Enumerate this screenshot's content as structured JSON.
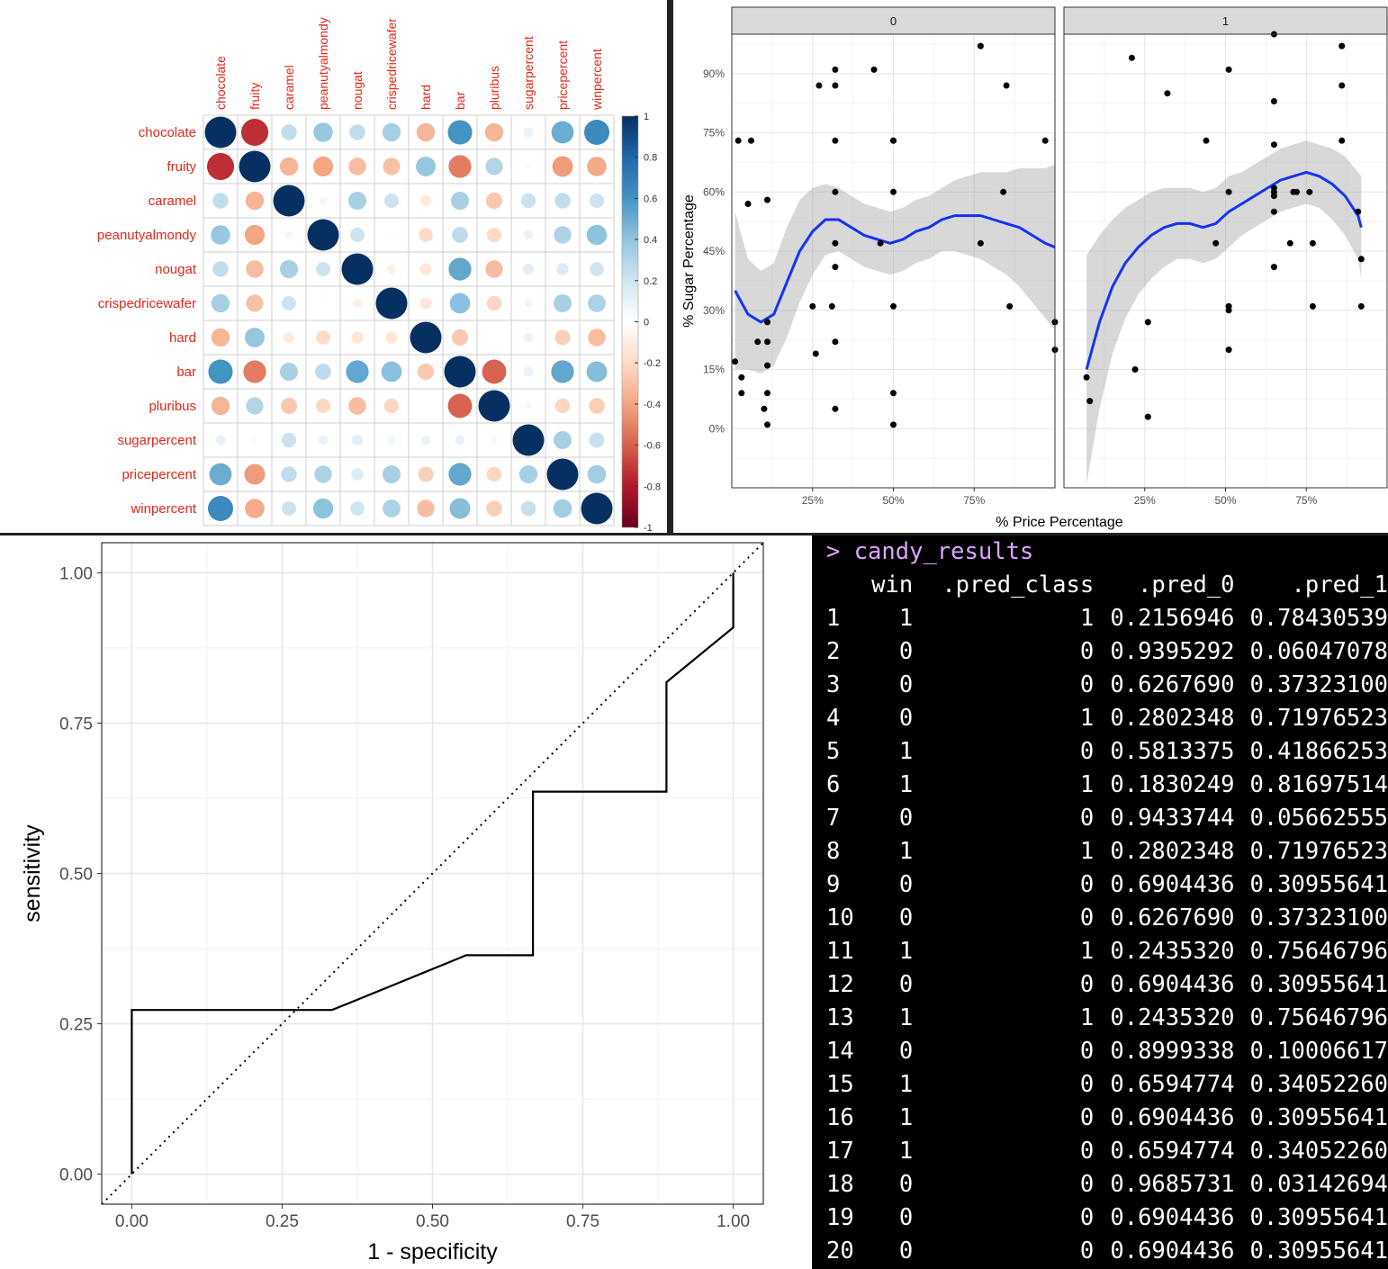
{
  "corrplot": {
    "variables": [
      "chocolate",
      "fruity",
      "caramel",
      "peanutyalmondy",
      "nougat",
      "crispedricewafer",
      "hard",
      "bar",
      "pluribus",
      "sugarpercent",
      "pricepercent",
      "winpercent"
    ],
    "matrix": [
      [
        1,
        -0.74,
        0.25,
        0.38,
        0.25,
        0.34,
        -0.34,
        0.6,
        -0.34,
        0.1,
        0.5,
        0.64
      ],
      [
        -0.74,
        1,
        -0.34,
        -0.4,
        -0.31,
        -0.3,
        0.39,
        -0.52,
        0.3,
        -0.03,
        -0.43,
        -0.38
      ],
      [
        0.25,
        -0.34,
        1,
        0.06,
        0.33,
        0.21,
        -0.12,
        0.33,
        -0.27,
        0.22,
        0.25,
        0.21
      ],
      [
        0.38,
        -0.4,
        0.06,
        1,
        0.21,
        -0.02,
        -0.2,
        0.26,
        -0.21,
        0.09,
        0.31,
        0.41
      ],
      [
        0.25,
        -0.31,
        0.33,
        0.21,
        1,
        -0.09,
        -0.14,
        0.52,
        -0.31,
        0.12,
        0.15,
        0.2
      ],
      [
        0.34,
        -0.3,
        0.21,
        -0.02,
        -0.09,
        1,
        -0.14,
        0.42,
        -0.22,
        0.07,
        0.33,
        0.32
      ],
      [
        -0.34,
        0.39,
        -0.12,
        -0.2,
        -0.14,
        -0.14,
        1,
        -0.27,
        0.01,
        0.09,
        -0.24,
        -0.31
      ],
      [
        0.6,
        -0.52,
        0.33,
        0.26,
        0.52,
        0.42,
        -0.27,
        1,
        -0.59,
        0.1,
        0.52,
        0.43
      ],
      [
        -0.34,
        0.3,
        -0.27,
        -0.21,
        -0.31,
        -0.22,
        0.01,
        -0.59,
        1,
        0.05,
        -0.22,
        -0.25
      ],
      [
        0.1,
        -0.03,
        0.22,
        0.09,
        0.12,
        0.07,
        0.09,
        0.1,
        0.05,
        1,
        0.33,
        0.23
      ],
      [
        0.5,
        -0.43,
        0.25,
        0.31,
        0.15,
        0.33,
        -0.24,
        0.52,
        -0.22,
        0.33,
        1,
        0.35
      ],
      [
        0.64,
        -0.38,
        0.21,
        0.41,
        0.2,
        0.32,
        -0.31,
        0.43,
        -0.25,
        0.23,
        0.35,
        1
      ]
    ],
    "legend_ticks": [
      "1",
      "0.8",
      "0.6",
      "0.4",
      "0.2",
      "0",
      "-0.2",
      "-0.4",
      "-0.6",
      "-0.8",
      "-1"
    ],
    "label_color": "#e3261b",
    "colors": {
      "pos_strong": "#0d2e63",
      "pos_mid": "#4f93c6",
      "neg_strong": "#b2182b",
      "neg_mid": "#e0614f"
    }
  },
  "scatter": {
    "facets": [
      "0",
      "1"
    ],
    "xlabel": "% Price Percentage",
    "ylabel": "% Sugar Percentage",
    "x_ticks": [
      "25%",
      "50%",
      "75%"
    ],
    "y_ticks": [
      "0%",
      "15%",
      "30%",
      "45%",
      "60%",
      "75%",
      "90%"
    ],
    "smooth_color": "#1433f5"
  },
  "roc": {
    "xlabel": "1 - specificity",
    "ylabel": "sensitivity",
    "x_ticks": [
      "0.00",
      "0.25",
      "0.50",
      "0.75",
      "1.00"
    ],
    "y_ticks": [
      "0.00",
      "0.25",
      "0.50",
      "0.75",
      "1.00"
    ]
  },
  "console": {
    "prompt": "> candy_results",
    "headers": [
      "win",
      ".pred_class",
      ".pred_0",
      ".pred_1"
    ],
    "rows": [
      [
        "1",
        "1",
        "1",
        "0.2156946",
        "0.78430539"
      ],
      [
        "2",
        "0",
        "0",
        "0.9395292",
        "0.06047078"
      ],
      [
        "3",
        "0",
        "0",
        "0.6267690",
        "0.37323100"
      ],
      [
        "4",
        "0",
        "1",
        "0.2802348",
        "0.71976523"
      ],
      [
        "5",
        "1",
        "0",
        "0.5813375",
        "0.41866253"
      ],
      [
        "6",
        "1",
        "1",
        "0.1830249",
        "0.81697514"
      ],
      [
        "7",
        "0",
        "0",
        "0.9433744",
        "0.05662555"
      ],
      [
        "8",
        "1",
        "1",
        "0.2802348",
        "0.71976523"
      ],
      [
        "9",
        "0",
        "0",
        "0.6904436",
        "0.30955641"
      ],
      [
        "10",
        "0",
        "0",
        "0.6267690",
        "0.37323100"
      ],
      [
        "11",
        "1",
        "1",
        "0.2435320",
        "0.75646796"
      ],
      [
        "12",
        "0",
        "0",
        "0.6904436",
        "0.30955641"
      ],
      [
        "13",
        "1",
        "1",
        "0.2435320",
        "0.75646796"
      ],
      [
        "14",
        "0",
        "0",
        "0.8999338",
        "0.10006617"
      ],
      [
        "15",
        "1",
        "0",
        "0.6594774",
        "0.34052260"
      ],
      [
        "16",
        "1",
        "0",
        "0.6904436",
        "0.30955641"
      ],
      [
        "17",
        "1",
        "0",
        "0.6594774",
        "0.34052260"
      ],
      [
        "18",
        "0",
        "0",
        "0.9685731",
        "0.03142694"
      ],
      [
        "19",
        "0",
        "0",
        "0.6904436",
        "0.30955641"
      ],
      [
        "20",
        "0",
        "0",
        "0.6904436",
        "0.30955641"
      ]
    ]
  },
  "chart_data": [
    {
      "type": "heatmap",
      "title": "",
      "categories": [
        "chocolate",
        "fruity",
        "caramel",
        "peanutyalmondy",
        "nougat",
        "crispedricewafer",
        "hard",
        "bar",
        "pluribus",
        "sugarpercent",
        "pricepercent",
        "winpercent"
      ],
      "value_range": [
        -1,
        1
      ],
      "note_key": "values in corrplot.matrix"
    },
    {
      "type": "scatter",
      "facets": [
        "0",
        "1"
      ],
      "xlabel": "% Price Percentage",
      "ylabel": "% Sugar Percentage",
      "series": [
        {
          "name": "0",
          "points": [
            [
              0.01,
              0.17
            ],
            [
              0.02,
              0.73
            ],
            [
              0.03,
              0.09
            ],
            [
              0.03,
              0.13
            ],
            [
              0.05,
              0.57
            ],
            [
              0.06,
              0.73
            ],
            [
              0.08,
              0.22
            ],
            [
              0.1,
              0.05
            ],
            [
              0.11,
              0.09
            ],
            [
              0.11,
              0.16
            ],
            [
              0.11,
              0.22
            ],
            [
              0.11,
              0.01
            ],
            [
              0.11,
              0.27
            ],
            [
              0.11,
              0.58
            ],
            [
              0.25,
              0.31
            ],
            [
              0.26,
              0.19
            ],
            [
              0.27,
              0.87
            ],
            [
              0.31,
              0.31
            ],
            [
              0.32,
              0.87
            ],
            [
              0.32,
              0.91
            ],
            [
              0.32,
              0.73
            ],
            [
              0.32,
              0.6
            ],
            [
              0.32,
              0.47
            ],
            [
              0.32,
              0.41
            ],
            [
              0.32,
              0.22
            ],
            [
              0.32,
              0.05
            ],
            [
              0.44,
              0.91
            ],
            [
              0.46,
              0.47
            ],
            [
              0.5,
              0.6
            ],
            [
              0.5,
              0.73
            ],
            [
              0.5,
              0.73
            ],
            [
              0.5,
              0.31
            ],
            [
              0.5,
              0.09
            ],
            [
              0.5,
              0.01
            ],
            [
              0.77,
              0.97
            ],
            [
              0.77,
              0.47
            ],
            [
              0.84,
              0.6
            ],
            [
              0.85,
              0.87
            ],
            [
              0.86,
              0.31
            ],
            [
              0.97,
              0.73
            ],
            [
              1.0,
              0.27
            ],
            [
              1.0,
              0.2
            ]
          ],
          "smooth": [
            [
              0.01,
              0.35
            ],
            [
              0.05,
              0.29
            ],
            [
              0.09,
              0.27
            ],
            [
              0.13,
              0.29
            ],
            [
              0.17,
              0.37
            ],
            [
              0.21,
              0.45
            ],
            [
              0.25,
              0.5
            ],
            [
              0.29,
              0.53
            ],
            [
              0.33,
              0.53
            ],
            [
              0.37,
              0.51
            ],
            [
              0.41,
              0.49
            ],
            [
              0.45,
              0.48
            ],
            [
              0.49,
              0.47
            ],
            [
              0.53,
              0.48
            ],
            [
              0.57,
              0.5
            ],
            [
              0.61,
              0.51
            ],
            [
              0.65,
              0.53
            ],
            [
              0.69,
              0.54
            ],
            [
              0.73,
              0.54
            ],
            [
              0.77,
              0.54
            ],
            [
              0.81,
              0.53
            ],
            [
              0.85,
              0.52
            ],
            [
              0.89,
              0.51
            ],
            [
              0.93,
              0.49
            ],
            [
              0.97,
              0.47
            ],
            [
              1.0,
              0.46
            ]
          ]
        },
        {
          "name": "1",
          "points": [
            [
              0.07,
              0.13
            ],
            [
              0.08,
              0.07
            ],
            [
              0.21,
              0.94
            ],
            [
              0.22,
              0.15
            ],
            [
              0.26,
              0.03
            ],
            [
              0.26,
              0.27
            ],
            [
              0.32,
              0.85
            ],
            [
              0.44,
              0.73
            ],
            [
              0.47,
              0.47
            ],
            [
              0.51,
              0.91
            ],
            [
              0.51,
              0.6
            ],
            [
              0.51,
              0.31
            ],
            [
              0.51,
              0.31
            ],
            [
              0.51,
              0.3
            ],
            [
              0.51,
              0.2
            ],
            [
              0.65,
              1.0
            ],
            [
              0.65,
              0.83
            ],
            [
              0.65,
              0.72
            ],
            [
              0.65,
              0.61
            ],
            [
              0.65,
              0.6
            ],
            [
              0.65,
              0.59
            ],
            [
              0.65,
              0.55
            ],
            [
              0.65,
              0.41
            ],
            [
              0.7,
              0.47
            ],
            [
              0.71,
              0.6
            ],
            [
              0.72,
              0.6
            ],
            [
              0.76,
              0.6
            ],
            [
              0.77,
              0.47
            ],
            [
              0.77,
              0.31
            ],
            [
              0.86,
              0.97
            ],
            [
              0.86,
              0.87
            ],
            [
              0.86,
              0.73
            ],
            [
              0.91,
              0.55
            ],
            [
              0.92,
              0.43
            ],
            [
              0.92,
              0.31
            ]
          ],
          "smooth": [
            [
              0.07,
              0.15
            ],
            [
              0.11,
              0.27
            ],
            [
              0.15,
              0.36
            ],
            [
              0.19,
              0.42
            ],
            [
              0.23,
              0.46
            ],
            [
              0.27,
              0.49
            ],
            [
              0.31,
              0.51
            ],
            [
              0.35,
              0.52
            ],
            [
              0.39,
              0.52
            ],
            [
              0.43,
              0.51
            ],
            [
              0.47,
              0.52
            ],
            [
              0.51,
              0.55
            ],
            [
              0.55,
              0.57
            ],
            [
              0.59,
              0.59
            ],
            [
              0.63,
              0.61
            ],
            [
              0.67,
              0.63
            ],
            [
              0.71,
              0.64
            ],
            [
              0.75,
              0.65
            ],
            [
              0.79,
              0.64
            ],
            [
              0.83,
              0.62
            ],
            [
              0.87,
              0.59
            ],
            [
              0.91,
              0.54
            ],
            [
              0.92,
              0.51
            ]
          ]
        }
      ],
      "xlim": [
        0,
        1
      ],
      "ylim": [
        -0.15,
        1.0
      ]
    },
    {
      "type": "line",
      "xlabel": "1 - specificity",
      "ylabel": "sensitivity",
      "xlim": [
        0,
        1
      ],
      "ylim": [
        0,
        1
      ],
      "series": [
        {
          "name": "",
          "x": [
            0,
            0,
            0.333,
            0.556,
            0.667,
            0.667,
            0.889,
            0.889,
            1,
            1
          ],
          "y": [
            0,
            0.273,
            0.273,
            0.364,
            0.364,
            0.636,
            0.636,
            0.818,
            0.909,
            1
          ]
        }
      ],
      "reference_line": "diagonal"
    },
    {
      "type": "table",
      "columns": [
        "",
        "win",
        ".pred_class",
        ".pred_0",
        ".pred_1"
      ],
      "note_key": "rows in console.rows"
    }
  ]
}
